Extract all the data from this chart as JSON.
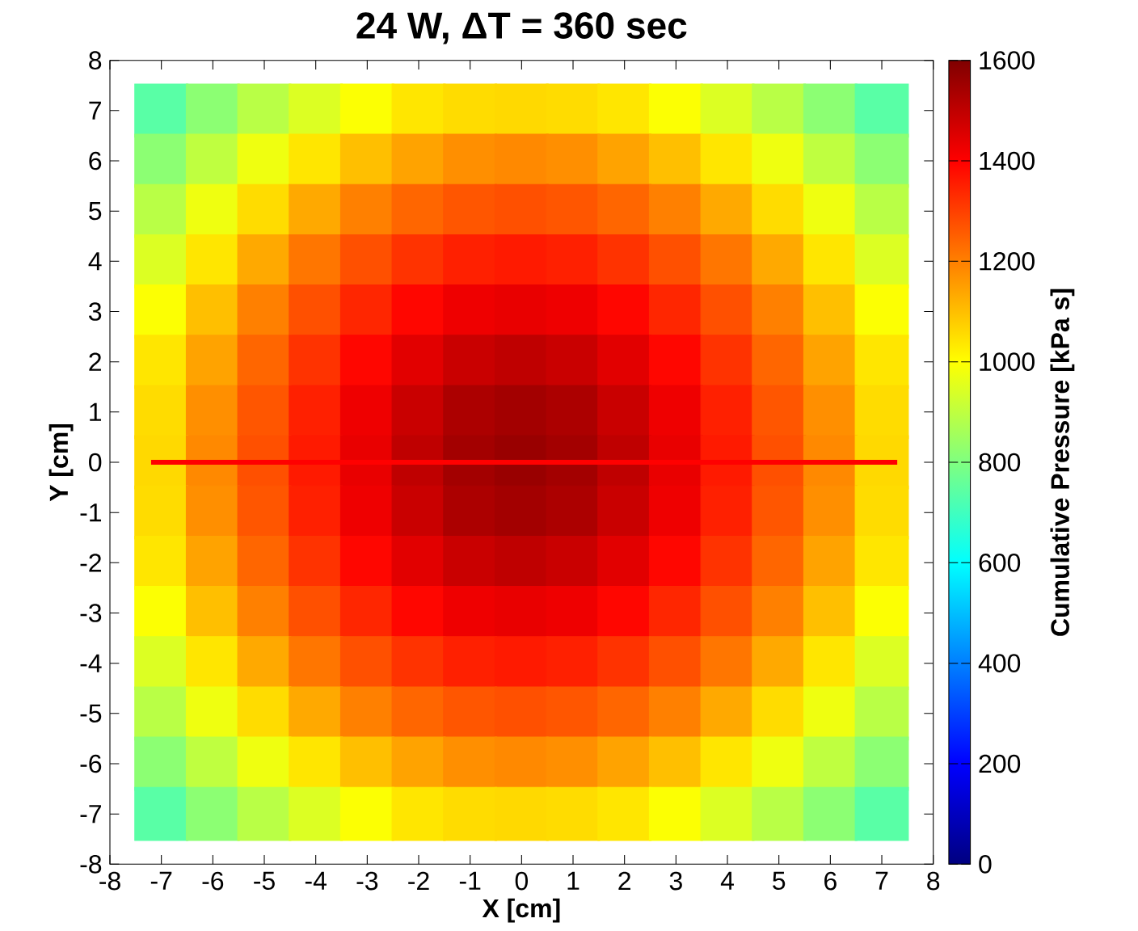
{
  "chart_data": {
    "type": "scatter",
    "title": "24 W, ΔT = 360 sec",
    "xlabel": "X [cm]",
    "ylabel": "Y [cm]",
    "clabel": "Cumulative Pressure [kPa s]",
    "marker": "square",
    "xlim": [
      -8,
      8
    ],
    "ylim": [
      -8,
      8
    ],
    "xticks": [
      -8,
      -7,
      -6,
      -5,
      -4,
      -3,
      -2,
      -1,
      0,
      1,
      2,
      3,
      4,
      5,
      6,
      7,
      8
    ],
    "yticks": [
      -8,
      -7,
      -6,
      -5,
      -4,
      -3,
      -2,
      -1,
      0,
      1,
      2,
      3,
      4,
      5,
      6,
      7,
      8
    ],
    "clim": [
      0,
      1600
    ],
    "cticks": [
      0,
      200,
      400,
      600,
      800,
      1000,
      1200,
      1400,
      1600
    ],
    "series": [
      {
        "x": [
          -7,
          -6,
          -5,
          -4,
          -3,
          -2,
          -1,
          0,
          1,
          2,
          3,
          4,
          5,
          6,
          7
        ],
        "values": [
          7,
          7,
          7,
          7,
          7,
          7,
          7,
          7,
          7,
          7,
          7,
          7,
          7,
          7,
          7
        ],
        "cvalues": [
          740,
          820,
          890,
          945,
          995,
          1040,
          1055,
          1060,
          1055,
          1040,
          995,
          945,
          890,
          820,
          740
        ],
        "colors": [
          "#59ffa6",
          "#8cff73",
          "#b9ff46",
          "#dcff23",
          "#fcff03",
          "#ffe600",
          "#ffdc00",
          "#ffd900",
          "#ffdc00",
          "#ffe600",
          "#fcff03",
          "#dcff23",
          "#b9ff46",
          "#8cff73",
          "#59ffa6"
        ]
      },
      {
        "x": [
          -7,
          -6,
          -5,
          -4,
          -3,
          -2,
          -1,
          0,
          1,
          2,
          3,
          4,
          5,
          6,
          7
        ],
        "values": [
          6,
          6,
          6,
          6,
          6,
          6,
          6,
          6,
          6,
          6,
          6,
          6,
          6,
          6,
          6
        ],
        "cvalues": [
          820,
          900,
          975,
          1040,
          1100,
          1145,
          1175,
          1185,
          1175,
          1145,
          1100,
          1040,
          975,
          900,
          820
        ],
        "colors": [
          "#8cff73",
          "#bfff40",
          "#efff10",
          "#ffe600",
          "#ffbf00",
          "#ffa300",
          "#ff8f00",
          "#ff8900",
          "#ff8f00",
          "#ffa300",
          "#ffbf00",
          "#ffe600",
          "#efff10",
          "#bfff40",
          "#8cff73"
        ]
      },
      {
        "x": [
          -7,
          -6,
          -5,
          -4,
          -3,
          -2,
          -1,
          0,
          1,
          2,
          3,
          4,
          5,
          6,
          7
        ],
        "values": [
          5,
          5,
          5,
          5,
          5,
          5,
          5,
          5,
          5,
          5,
          5,
          5,
          5,
          5,
          5
        ],
        "cvalues": [
          890,
          975,
          1055,
          1135,
          1200,
          1240,
          1265,
          1275,
          1265,
          1240,
          1200,
          1135,
          1055,
          975,
          890
        ],
        "colors": [
          "#b9ff46",
          "#efff10",
          "#ffdc00",
          "#ffa900",
          "#ff8000",
          "#ff6600",
          "#ff5600",
          "#ff5000",
          "#ff5600",
          "#ff6600",
          "#ff8000",
          "#ffa900",
          "#ffdc00",
          "#efff10",
          "#b9ff46"
        ]
      },
      {
        "x": [
          -7,
          -6,
          -5,
          -4,
          -3,
          -2,
          -1,
          0,
          1,
          2,
          3,
          4,
          5,
          6,
          7
        ],
        "values": [
          4,
          4,
          4,
          4,
          4,
          4,
          4,
          4,
          4,
          4,
          4,
          4,
          4,
          4,
          4
        ],
        "cvalues": [
          945,
          1040,
          1135,
          1215,
          1275,
          1320,
          1350,
          1360,
          1350,
          1320,
          1275,
          1215,
          1135,
          1040,
          945
        ],
        "colors": [
          "#dcff23",
          "#ffe600",
          "#ffa900",
          "#ff7600",
          "#ff5000",
          "#ff3300",
          "#ff2000",
          "#ff1a00",
          "#ff2000",
          "#ff3300",
          "#ff5000",
          "#ff7600",
          "#ffa900",
          "#ffe600",
          "#dcff23"
        ]
      },
      {
        "x": [
          -7,
          -6,
          -5,
          -4,
          -3,
          -2,
          -1,
          0,
          1,
          2,
          3,
          4,
          5,
          6,
          7
        ],
        "values": [
          3,
          3,
          3,
          3,
          3,
          3,
          3,
          3,
          3,
          3,
          3,
          3,
          3,
          3,
          3
        ],
        "cvalues": [
          995,
          1100,
          1200,
          1275,
          1340,
          1390,
          1425,
          1435,
          1425,
          1390,
          1340,
          1275,
          1200,
          1100,
          995
        ],
        "colors": [
          "#fcff03",
          "#ffbf00",
          "#ff8000",
          "#ff5000",
          "#ff2600",
          "#ff0600",
          "#ef0000",
          "#e90000",
          "#ef0000",
          "#ff0600",
          "#ff2600",
          "#ff5000",
          "#ff8000",
          "#ffbf00",
          "#fcff03"
        ]
      },
      {
        "x": [
          -7,
          -6,
          -5,
          -4,
          -3,
          -2,
          -1,
          0,
          1,
          2,
          3,
          4,
          5,
          6,
          7
        ],
        "values": [
          2,
          2,
          2,
          2,
          2,
          2,
          2,
          2,
          2,
          2,
          2,
          2,
          2,
          2,
          2
        ],
        "cvalues": [
          1040,
          1145,
          1240,
          1320,
          1390,
          1445,
          1485,
          1500,
          1485,
          1445,
          1390,
          1320,
          1240,
          1145,
          1040
        ],
        "colors": [
          "#ffe600",
          "#ffa300",
          "#ff6600",
          "#ff3300",
          "#ff0600",
          "#e20000",
          "#c90000",
          "#bf0000",
          "#c90000",
          "#e20000",
          "#ff0600",
          "#ff3300",
          "#ff6600",
          "#ffa300",
          "#ffe600"
        ]
      },
      {
        "x": [
          -7,
          -6,
          -5,
          -4,
          -3,
          -2,
          -1,
          0,
          1,
          2,
          3,
          4,
          5,
          6,
          7
        ],
        "values": [
          1,
          1,
          1,
          1,
          1,
          1,
          1,
          1,
          1,
          1,
          1,
          1,
          1,
          1,
          1
        ],
        "cvalues": [
          1055,
          1175,
          1265,
          1350,
          1425,
          1485,
          1530,
          1545,
          1530,
          1485,
          1425,
          1350,
          1265,
          1175,
          1055
        ],
        "colors": [
          "#ffdc00",
          "#ff8f00",
          "#ff5600",
          "#ff2000",
          "#ef0000",
          "#c90000",
          "#ac0000",
          "#a30000",
          "#ac0000",
          "#c90000",
          "#ef0000",
          "#ff2000",
          "#ff5600",
          "#ff8f00",
          "#ffdc00"
        ]
      },
      {
        "x": [
          -7,
          -6,
          -5,
          -4,
          -3,
          -2,
          -1,
          0,
          1,
          2,
          3,
          4,
          5,
          6,
          7
        ],
        "values": [
          0,
          0,
          0,
          0,
          0,
          0,
          0,
          0,
          0,
          0,
          0,
          0,
          0,
          0,
          0
        ],
        "cvalues": [
          1060,
          1185,
          1275,
          1360,
          1435,
          1500,
          1545,
          1560,
          1545,
          1500,
          1435,
          1360,
          1275,
          1185,
          1060
        ],
        "colors": [
          "#ffd900",
          "#ff8900",
          "#ff5000",
          "#ff1a00",
          "#e90000",
          "#bf0000",
          "#a30000",
          "#990000",
          "#a30000",
          "#bf0000",
          "#e90000",
          "#ff1a00",
          "#ff5000",
          "#ff8900",
          "#ffd900"
        ]
      },
      {
        "x": [
          -7,
          -6,
          -5,
          -4,
          -3,
          -2,
          -1,
          0,
          1,
          2,
          3,
          4,
          5,
          6,
          7
        ],
        "values": [
          -1,
          -1,
          -1,
          -1,
          -1,
          -1,
          -1,
          -1,
          -1,
          -1,
          -1,
          -1,
          -1,
          -1,
          -1
        ],
        "cvalues": [
          1055,
          1175,
          1265,
          1350,
          1425,
          1485,
          1530,
          1545,
          1530,
          1485,
          1425,
          1350,
          1265,
          1175,
          1055
        ],
        "colors": [
          "#ffdc00",
          "#ff8f00",
          "#ff5600",
          "#ff2000",
          "#ef0000",
          "#c90000",
          "#ac0000",
          "#a30000",
          "#ac0000",
          "#c90000",
          "#ef0000",
          "#ff2000",
          "#ff5600",
          "#ff8f00",
          "#ffdc00"
        ]
      },
      {
        "x": [
          -7,
          -6,
          -5,
          -4,
          -3,
          -2,
          -1,
          0,
          1,
          2,
          3,
          4,
          5,
          6,
          7
        ],
        "values": [
          -2,
          -2,
          -2,
          -2,
          -2,
          -2,
          -2,
          -2,
          -2,
          -2,
          -2,
          -2,
          -2,
          -2,
          -2
        ],
        "cvalues": [
          1040,
          1145,
          1240,
          1320,
          1390,
          1445,
          1485,
          1500,
          1485,
          1445,
          1390,
          1320,
          1240,
          1145,
          1040
        ],
        "colors": [
          "#ffe600",
          "#ffa300",
          "#ff6600",
          "#ff3300",
          "#ff0600",
          "#e20000",
          "#c90000",
          "#bf0000",
          "#c90000",
          "#e20000",
          "#ff0600",
          "#ff3300",
          "#ff6600",
          "#ffa300",
          "#ffe600"
        ]
      },
      {
        "x": [
          -7,
          -6,
          -5,
          -4,
          -3,
          -2,
          -1,
          0,
          1,
          2,
          3,
          4,
          5,
          6,
          7
        ],
        "values": [
          -3,
          -3,
          -3,
          -3,
          -3,
          -3,
          -3,
          -3,
          -3,
          -3,
          -3,
          -3,
          -3,
          -3,
          -3
        ],
        "cvalues": [
          995,
          1100,
          1200,
          1275,
          1340,
          1390,
          1425,
          1435,
          1425,
          1390,
          1340,
          1275,
          1200,
          1100,
          995
        ],
        "colors": [
          "#fcff03",
          "#ffbf00",
          "#ff8000",
          "#ff5000",
          "#ff2600",
          "#ff0600",
          "#ef0000",
          "#e90000",
          "#ef0000",
          "#ff0600",
          "#ff2600",
          "#ff5000",
          "#ff8000",
          "#ffbf00",
          "#fcff03"
        ]
      },
      {
        "x": [
          -7,
          -6,
          -5,
          -4,
          -3,
          -2,
          -1,
          0,
          1,
          2,
          3,
          4,
          5,
          6,
          7
        ],
        "values": [
          -4,
          -4,
          -4,
          -4,
          -4,
          -4,
          -4,
          -4,
          -4,
          -4,
          -4,
          -4,
          -4,
          -4,
          -4
        ],
        "cvalues": [
          945,
          1040,
          1135,
          1215,
          1275,
          1320,
          1350,
          1360,
          1350,
          1320,
          1275,
          1215,
          1135,
          1040,
          945
        ],
        "colors": [
          "#dcff23",
          "#ffe600",
          "#ffa900",
          "#ff7600",
          "#ff5000",
          "#ff3300",
          "#ff2000",
          "#ff1a00",
          "#ff2000",
          "#ff3300",
          "#ff5000",
          "#ff7600",
          "#ffa900",
          "#ffe600",
          "#dcff23"
        ]
      },
      {
        "x": [
          -7,
          -6,
          -5,
          -4,
          -3,
          -2,
          -1,
          0,
          1,
          2,
          3,
          4,
          5,
          6,
          7
        ],
        "values": [
          -5,
          -5,
          -5,
          -5,
          -5,
          -5,
          -5,
          -5,
          -5,
          -5,
          -5,
          -5,
          -5,
          -5,
          -5
        ],
        "cvalues": [
          890,
          975,
          1055,
          1135,
          1200,
          1240,
          1265,
          1275,
          1265,
          1240,
          1200,
          1135,
          1055,
          975,
          890
        ],
        "colors": [
          "#b9ff46",
          "#efff10",
          "#ffdc00",
          "#ffa900",
          "#ff8000",
          "#ff6600",
          "#ff5600",
          "#ff5000",
          "#ff5600",
          "#ff6600",
          "#ff8000",
          "#ffa900",
          "#ffdc00",
          "#efff10",
          "#b9ff46"
        ]
      },
      {
        "x": [
          -7,
          -6,
          -5,
          -4,
          -3,
          -2,
          -1,
          0,
          1,
          2,
          3,
          4,
          5,
          6,
          7
        ],
        "values": [
          -6,
          -6,
          -6,
          -6,
          -6,
          -6,
          -6,
          -6,
          -6,
          -6,
          -6,
          -6,
          -6,
          -6,
          -6
        ],
        "cvalues": [
          820,
          900,
          975,
          1040,
          1100,
          1145,
          1175,
          1185,
          1175,
          1145,
          1100,
          1040,
          975,
          900,
          820
        ],
        "colors": [
          "#8cff73",
          "#bfff40",
          "#efff10",
          "#ffe600",
          "#ffbf00",
          "#ffa300",
          "#ff8f00",
          "#ff8900",
          "#ff8f00",
          "#ffa300",
          "#ffbf00",
          "#ffe600",
          "#efff10",
          "#bfff40",
          "#8cff73"
        ]
      },
      {
        "x": [
          -7,
          -6,
          -5,
          -4,
          -3,
          -2,
          -1,
          0,
          1,
          2,
          3,
          4,
          5,
          6,
          7
        ],
        "values": [
          -7,
          -7,
          -7,
          -7,
          -7,
          -7,
          -7,
          -7,
          -7,
          -7,
          -7,
          -7,
          -7,
          -7,
          -7
        ],
        "cvalues": [
          740,
          820,
          890,
          945,
          995,
          1040,
          1055,
          1060,
          1055,
          1040,
          995,
          945,
          890,
          820,
          740
        ],
        "colors": [
          "#59ffa6",
          "#8cff73",
          "#b9ff46",
          "#dcff23",
          "#fcff03",
          "#ffe600",
          "#ffdc00",
          "#ffd900",
          "#ffdc00",
          "#ffe600",
          "#fcff03",
          "#dcff23",
          "#b9ff46",
          "#8cff73",
          "#59ffa6"
        ]
      },
      {
        "type": "line",
        "marker": "none",
        "color": "#ff0000",
        "x": [
          -7.2,
          7.3
        ],
        "values": [
          0,
          0
        ]
      }
    ]
  }
}
